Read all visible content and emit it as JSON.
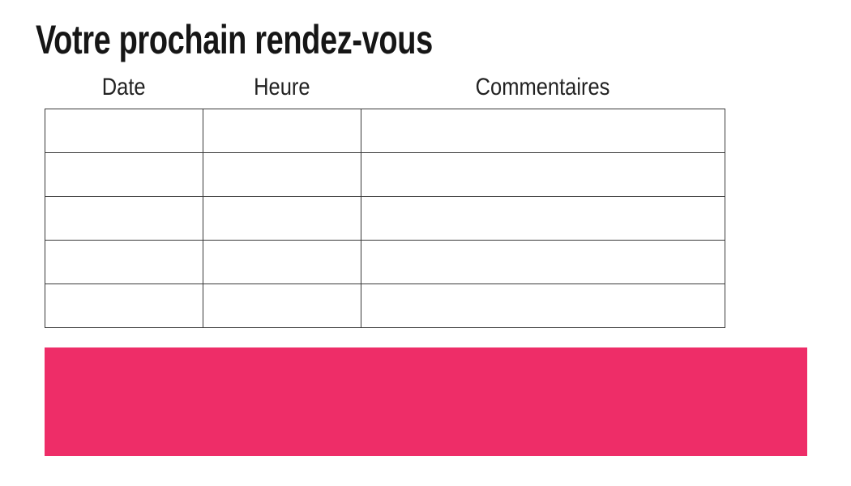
{
  "page": {
    "title": "Votre prochain rendez-vous"
  },
  "table": {
    "columns": [
      "Date",
      "Heure",
      "Commentaires"
    ],
    "rows": [
      [
        "",
        "",
        ""
      ],
      [
        "",
        "",
        ""
      ],
      [
        "",
        "",
        ""
      ],
      [
        "",
        "",
        ""
      ],
      [
        "",
        "",
        ""
      ]
    ]
  },
  "colors": {
    "banner_pink": "#EE2D68",
    "table_border": "#3a3a3a",
    "title_text": "#161616",
    "header_text": "#222222"
  }
}
